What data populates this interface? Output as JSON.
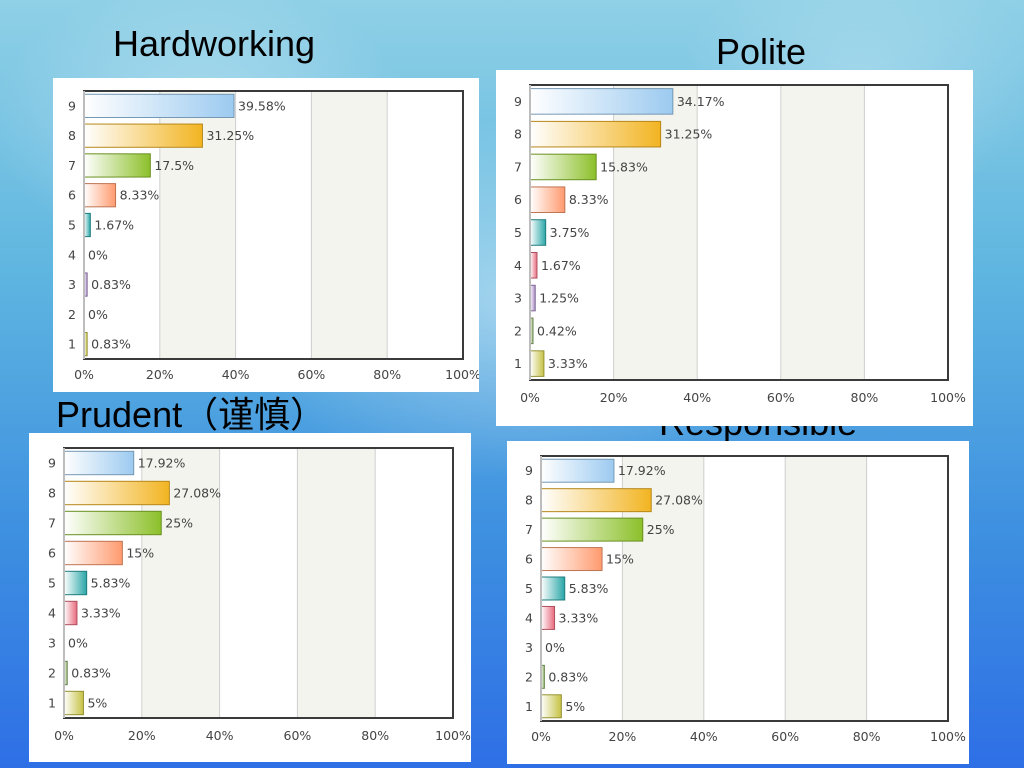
{
  "slide": {
    "titles": {
      "hardworking": "Hardworking",
      "polite": "Polite",
      "prudent": "Prudent（谨慎）",
      "responsible": "Responsible"
    }
  },
  "colors": {
    "9": "#9ccaf0",
    "8": "#f2b421",
    "7": "#8cc02a",
    "6": "#ff9a6e",
    "5": "#2aa6a8",
    "4": "#e86a7e",
    "3": "#a98bc8",
    "2": "#8fb36a",
    "1": "#c6c244"
  },
  "chart_data": [
    {
      "type": "bar",
      "orientation": "horizontal",
      "title": "Hardworking",
      "categories": [
        "9",
        "8",
        "7",
        "6",
        "5",
        "4",
        "3",
        "2",
        "1"
      ],
      "values": [
        39.58,
        31.25,
        17.5,
        8.33,
        1.67,
        0,
        0.83,
        0,
        0.83
      ],
      "labels": [
        "39.58%",
        "31.25%",
        "17.5%",
        "8.33%",
        "1.67%",
        "0%",
        "0.83%",
        "0%",
        "0.83%"
      ],
      "xticks": [
        "0%",
        "20%",
        "40%",
        "60%",
        "80%",
        "100%"
      ],
      "xlim": [
        0,
        100
      ],
      "grid": true
    },
    {
      "type": "bar",
      "orientation": "horizontal",
      "title": "Polite",
      "categories": [
        "9",
        "8",
        "7",
        "6",
        "5",
        "4",
        "3",
        "2",
        "1"
      ],
      "values": [
        34.17,
        31.25,
        15.83,
        8.33,
        3.75,
        1.67,
        1.25,
        0.42,
        3.33
      ],
      "labels": [
        "34.17%",
        "31.25%",
        "15.83%",
        "8.33%",
        "3.75%",
        "1.67%",
        "1.25%",
        "0.42%",
        "3.33%"
      ],
      "xticks": [
        "0%",
        "20%",
        "40%",
        "60%",
        "80%",
        "100%"
      ],
      "xlim": [
        0,
        100
      ],
      "grid": true
    },
    {
      "type": "bar",
      "orientation": "horizontal",
      "title": "Prudent（谨慎）",
      "categories": [
        "9",
        "8",
        "7",
        "6",
        "5",
        "4",
        "3",
        "2",
        "1"
      ],
      "values": [
        17.92,
        27.08,
        25,
        15,
        5.83,
        3.33,
        0,
        0.83,
        5
      ],
      "labels": [
        "17.92%",
        "27.08%",
        "25%",
        "15%",
        "5.83%",
        "3.33%",
        "0%",
        "0.83%",
        "5%"
      ],
      "xticks": [
        "0%",
        "20%",
        "40%",
        "60%",
        "80%",
        "100%"
      ],
      "xlim": [
        0,
        100
      ],
      "grid": true
    },
    {
      "type": "bar",
      "orientation": "horizontal",
      "title": "Responsible",
      "categories": [
        "9",
        "8",
        "7",
        "6",
        "5",
        "4",
        "3",
        "2",
        "1"
      ],
      "values": [
        17.92,
        27.08,
        25,
        15,
        5.83,
        3.33,
        0,
        0.83,
        5
      ],
      "labels": [
        "17.92%",
        "27.08%",
        "25%",
        "15%",
        "5.83%",
        "3.33%",
        "0%",
        "0.83%",
        "5%"
      ],
      "xticks": [
        "0%",
        "20%",
        "40%",
        "60%",
        "80%",
        "100%"
      ],
      "xlim": [
        0,
        100
      ],
      "grid": true
    }
  ]
}
